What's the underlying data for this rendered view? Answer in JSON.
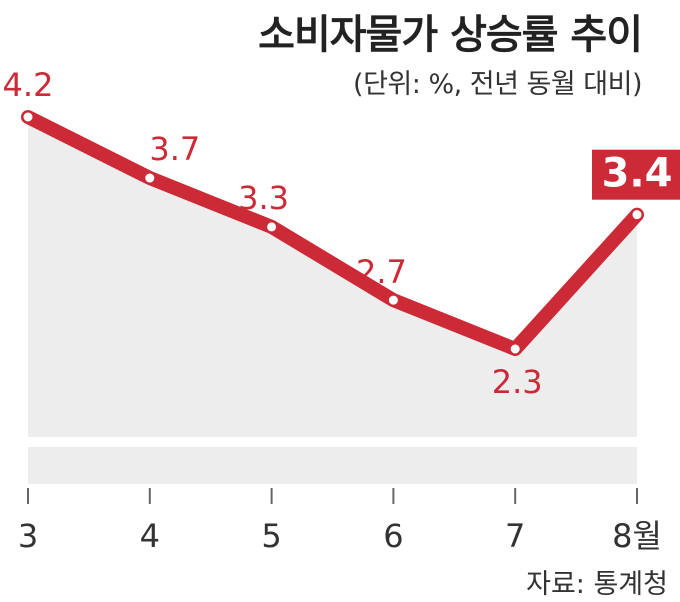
{
  "colors": {
    "line": "#cc2a36",
    "area": "#ededed",
    "axis": "#666666",
    "highlight_bg": "#cc2a36"
  },
  "chart_data": {
    "type": "line",
    "title": "소비자물가 상승률 추이",
    "subtitle": "(단위: %, 전년 동월 대비)",
    "source": "자료: 통계청",
    "categories": [
      "3",
      "4",
      "5",
      "6",
      "7",
      "8월"
    ],
    "values": [
      4.2,
      3.7,
      3.3,
      2.7,
      2.3,
      3.4
    ],
    "data_labels": [
      "4.2",
      "3.7",
      "3.3",
      "2.7",
      "2.3",
      "3.4"
    ],
    "highlight_index": 5,
    "xlabel": "",
    "ylabel": "",
    "grid": false,
    "legend": "none"
  }
}
